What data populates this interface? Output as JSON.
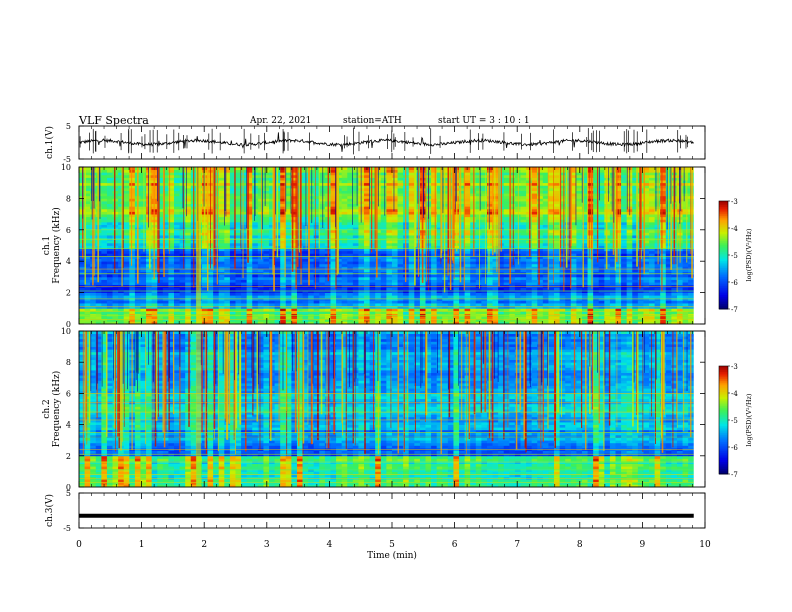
{
  "header": {
    "title": "VLF  Spectra",
    "date": "Apr. 22, 2021",
    "station": "station=ATH",
    "start": "start  UT  =    3  : 10 : 1"
  },
  "chart_data": [
    {
      "type": "line",
      "id": "ch1-waveform",
      "ylabel": "ch.1(V)",
      "ylim": [
        -5,
        5
      ],
      "yticks": [
        "5",
        "-5"
      ],
      "series": [
        {
          "values_desc": "noisy waveform near 0 V",
          "level": 0
        }
      ]
    },
    {
      "type": "heatmap",
      "id": "ch1-spectrogram",
      "ylabel": "ch.1\nFrequency  (kHz)",
      "ylabel_lines": [
        "ch.1",
        "Frequency  (kHz)"
      ],
      "ylim": [
        0,
        10
      ],
      "yticks": [
        "0",
        "2",
        "4",
        "6",
        "8",
        "10"
      ],
      "colorbar": {
        "label": "log(PSD)(V²/Hz)",
        "ticks": [
          "-3",
          "-4",
          "-5",
          "-6",
          "-7"
        ],
        "range": [
          -7,
          -3
        ]
      },
      "bands_kHz": [
        {
          "from": 0,
          "to": 1,
          "level": -4.6
        },
        {
          "from": 1,
          "to": 2,
          "level": -5.7
        },
        {
          "from": 2,
          "to": 2.5,
          "level": -6.4
        },
        {
          "from": 2.5,
          "to": 4.8,
          "level": -6.0
        },
        {
          "from": 4.8,
          "to": 6.5,
          "level": -5.1
        },
        {
          "from": 6.5,
          "to": 10,
          "level": -4.6
        }
      ]
    },
    {
      "type": "heatmap",
      "id": "ch2-spectrogram",
      "ylabel_lines": [
        "ch.2",
        "Frequency  (kHz)"
      ],
      "ylim": [
        0,
        10
      ],
      "yticks": [
        "0",
        "2",
        "4",
        "6",
        "8",
        "10"
      ],
      "colorbar": {
        "label": "log(PSD)(V²/Hz)",
        "ticks": [
          "-3",
          "-4",
          "-5",
          "-6",
          "-7"
        ],
        "range": [
          -7,
          -3
        ]
      },
      "bands_kHz": [
        {
          "from": 0,
          "to": 2,
          "level": -4.9
        },
        {
          "from": 2,
          "to": 2.6,
          "level": -5.9
        },
        {
          "from": 2.6,
          "to": 4.5,
          "level": -5.6
        },
        {
          "from": 4.5,
          "to": 6.8,
          "level": -5.4
        },
        {
          "from": 6.8,
          "to": 10,
          "level": -5.6
        }
      ]
    },
    {
      "type": "line",
      "id": "ch3-waveform",
      "ylabel": "ch.3(V)",
      "ylim": [
        -5,
        5
      ],
      "yticks": [
        "5",
        "-5"
      ],
      "series": [
        {
          "values_desc": "flat thick trace",
          "level": -1.5
        }
      ]
    }
  ],
  "xaxis": {
    "label": "Time  (min)",
    "range": [
      0,
      10
    ],
    "ticks": [
      "0",
      "1",
      "2",
      "3",
      "4",
      "5",
      "6",
      "7",
      "8",
      "9",
      "10"
    ],
    "data_end_min": 9.82
  },
  "colors": {
    "trace": "#000000",
    "frame": "#000000"
  }
}
